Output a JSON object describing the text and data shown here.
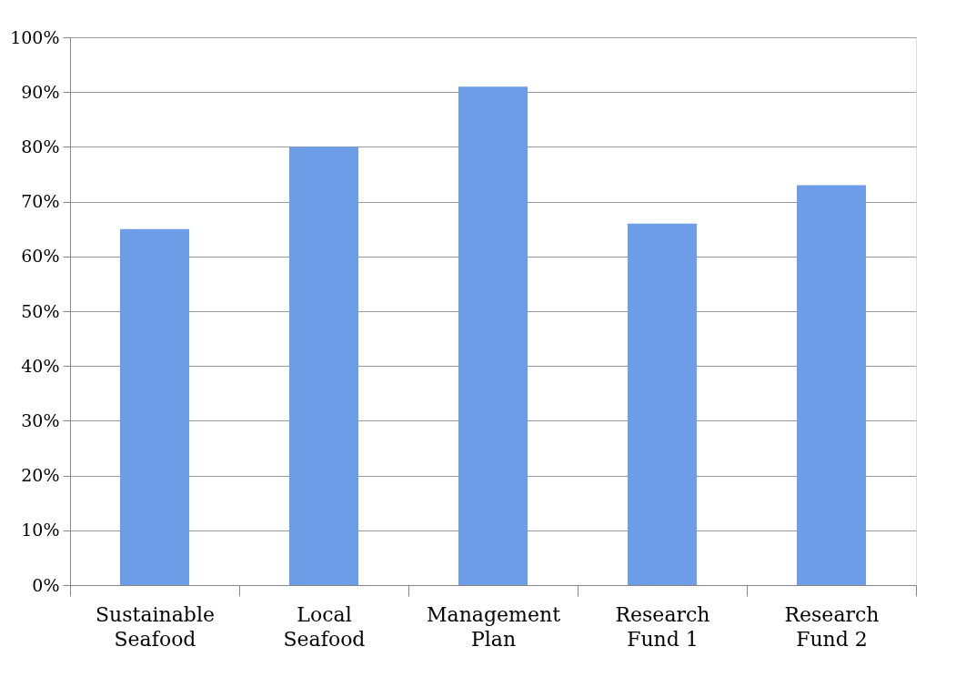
{
  "chart_data": {
    "type": "bar",
    "categories": [
      "Sustainable\nSeafood",
      "Local\nSeafood",
      "Management\nPlan",
      "Research\nFund 1",
      "Research\nFund 2"
    ],
    "values": [
      65,
      80,
      91,
      66,
      73
    ],
    "color": "#6c9de6",
    "ylim": [
      0,
      100
    ],
    "yticks": [
      {
        "value": 0,
        "label": "0%"
      },
      {
        "value": 10,
        "label": "10%"
      },
      {
        "value": 20,
        "label": "20%"
      },
      {
        "value": 30,
        "label": "30%"
      },
      {
        "value": 40,
        "label": "40%"
      },
      {
        "value": 50,
        "label": "50%"
      },
      {
        "value": 60,
        "label": "60%"
      },
      {
        "value": 70,
        "label": "70%"
      },
      {
        "value": 80,
        "label": "80%"
      },
      {
        "value": 90,
        "label": "90%"
      },
      {
        "value": 100,
        "label": "100%"
      }
    ],
    "grid": "y"
  }
}
